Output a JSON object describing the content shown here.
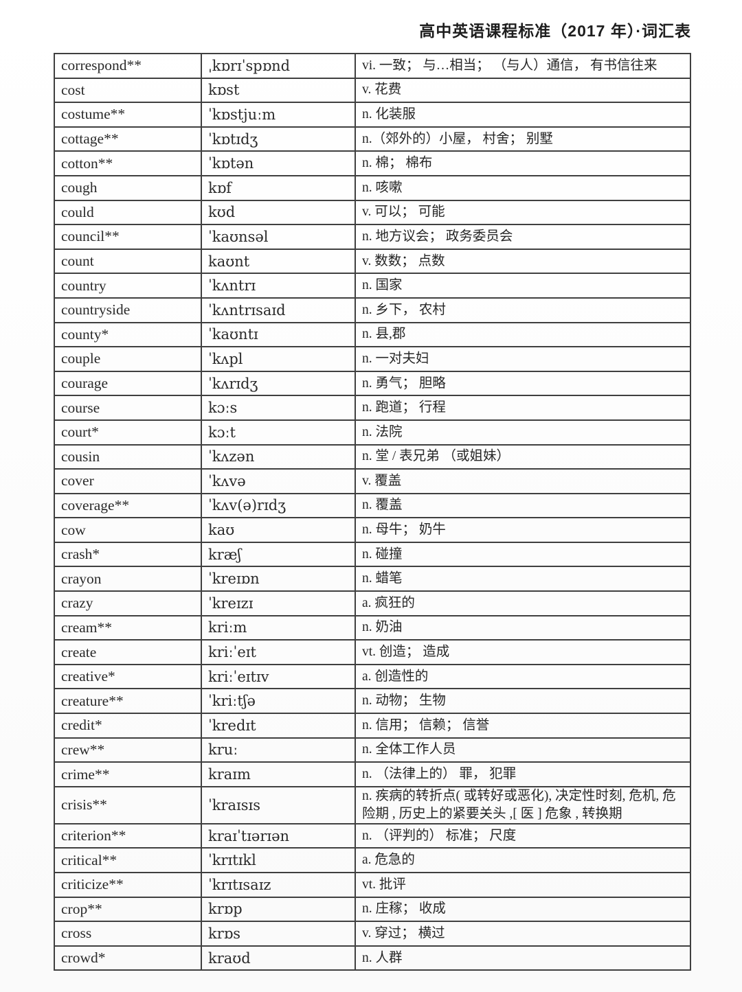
{
  "header": {
    "title": "高中英语课程标准（2017 年）·词汇表"
  },
  "colors": {
    "border": "#3f3f3f",
    "text": "#232323",
    "background": "#ffffff"
  },
  "table": {
    "rows": [
      {
        "word": "correspond**",
        "ipa": "ˌkɒrɪˈspɒnd",
        "def": "vi. 一致； 与…相当； （与人）通信， 有书信往来"
      },
      {
        "word": "cost",
        "ipa": "kɒst",
        "def": "v. 花费"
      },
      {
        "word": "costume**",
        "ipa": "ˈkɒstjuːm",
        "def": "n. 化装服"
      },
      {
        "word": "cottage**",
        "ipa": "ˈkɒtɪdʒ",
        "def": "n.（郊外的）小屋， 村舍； 别墅"
      },
      {
        "word": "cotton**",
        "ipa": "ˈkɒtən",
        "def": "n. 棉； 棉布"
      },
      {
        "word": "cough",
        "ipa": "kɒf",
        "def": "n. 咳嗽"
      },
      {
        "word": "could",
        "ipa": "kʊd",
        "def": "v. 可以； 可能"
      },
      {
        "word": "council**",
        "ipa": "ˈkaʊnsəl",
        "def": "n. 地方议会； 政务委员会"
      },
      {
        "word": "count",
        "ipa": "kaʊnt",
        "def": "v. 数数； 点数"
      },
      {
        "word": "country",
        "ipa": "ˈkʌntrɪ",
        "def": "n. 国家"
      },
      {
        "word": "countryside",
        "ipa": "ˈkʌntrɪsaɪd",
        "def": "n. 乡下， 农村"
      },
      {
        "word": "county*",
        "ipa": "ˈkaʊntɪ",
        "def": "n. 县,郡"
      },
      {
        "word": "couple",
        "ipa": "ˈkʌpl",
        "def": "n. 一对夫妇"
      },
      {
        "word": "courage",
        "ipa": "ˈkʌrɪdʒ",
        "def": "n. 勇气； 胆略"
      },
      {
        "word": "course",
        "ipa": "kɔːs",
        "def": "n. 跑道； 行程"
      },
      {
        "word": "court*",
        "ipa": "kɔːt",
        "def": "n. 法院"
      },
      {
        "word": "cousin",
        "ipa": "ˈkʌzən",
        "def": "n. 堂 / 表兄弟 （或姐妹）"
      },
      {
        "word": "cover",
        "ipa": "ˈkʌvə",
        "def": "v. 覆盖"
      },
      {
        "word": "coverage**",
        "ipa": "ˈkʌv(ə)rɪdʒ",
        "def": "n. 覆盖"
      },
      {
        "word": "cow",
        "ipa": "kaʊ",
        "def": "n. 母牛； 奶牛"
      },
      {
        "word": "crash*",
        "ipa": "kræʃ",
        "def": "n. 碰撞"
      },
      {
        "word": "crayon",
        "ipa": "ˈkreɪɒn",
        "def": "n. 蜡笔"
      },
      {
        "word": "crazy",
        "ipa": "ˈkreɪzɪ",
        "def": "a. 疯狂的"
      },
      {
        "word": "cream**",
        "ipa": "kriːm",
        "def": "n. 奶油"
      },
      {
        "word": "create",
        "ipa": "kriːˈeɪt",
        "def": "vt. 创造； 造成"
      },
      {
        "word": "creative*",
        "ipa": "kriːˈeɪtɪv",
        "def": "a. 创造性的"
      },
      {
        "word": "creature**",
        "ipa": "ˈkriːtʃə",
        "def": "n. 动物； 生物"
      },
      {
        "word": "credit*",
        "ipa": "ˈkredɪt",
        "def": "n. 信用； 信赖； 信誉"
      },
      {
        "word": "crew**",
        "ipa": "kruː",
        "def": "n. 全体工作人员"
      },
      {
        "word": "crime**",
        "ipa": "kraɪm",
        "def": "n. （法律上的） 罪， 犯罪"
      },
      {
        "word": "crisis**",
        "ipa": "ˈkraɪsɪs",
        "def": "n. 疾病的转折点( 或转好或恶化), 决定性时刻, 危机, 危险期 , 历史上的紧要关头 ,[ 医 ] 危象 , 转换期"
      },
      {
        "word": "criterion**",
        "ipa": "kraɪˈtɪərɪən",
        "def": "n. （评判的） 标准； 尺度"
      },
      {
        "word": "critical**",
        "ipa": "ˈkrɪtɪkl",
        "def": "a. 危急的"
      },
      {
        "word": "criticize**",
        "ipa": "ˈkrɪtɪsaɪz",
        "def": "vt. 批评"
      },
      {
        "word": "crop**",
        "ipa": "krɒp",
        "def": "n. 庄稼； 收成"
      },
      {
        "word": "cross",
        "ipa": "krɒs",
        "def": "v. 穿过； 横过"
      },
      {
        "word": "crowd*",
        "ipa": "kraʊd",
        "def": "n. 人群"
      }
    ]
  }
}
